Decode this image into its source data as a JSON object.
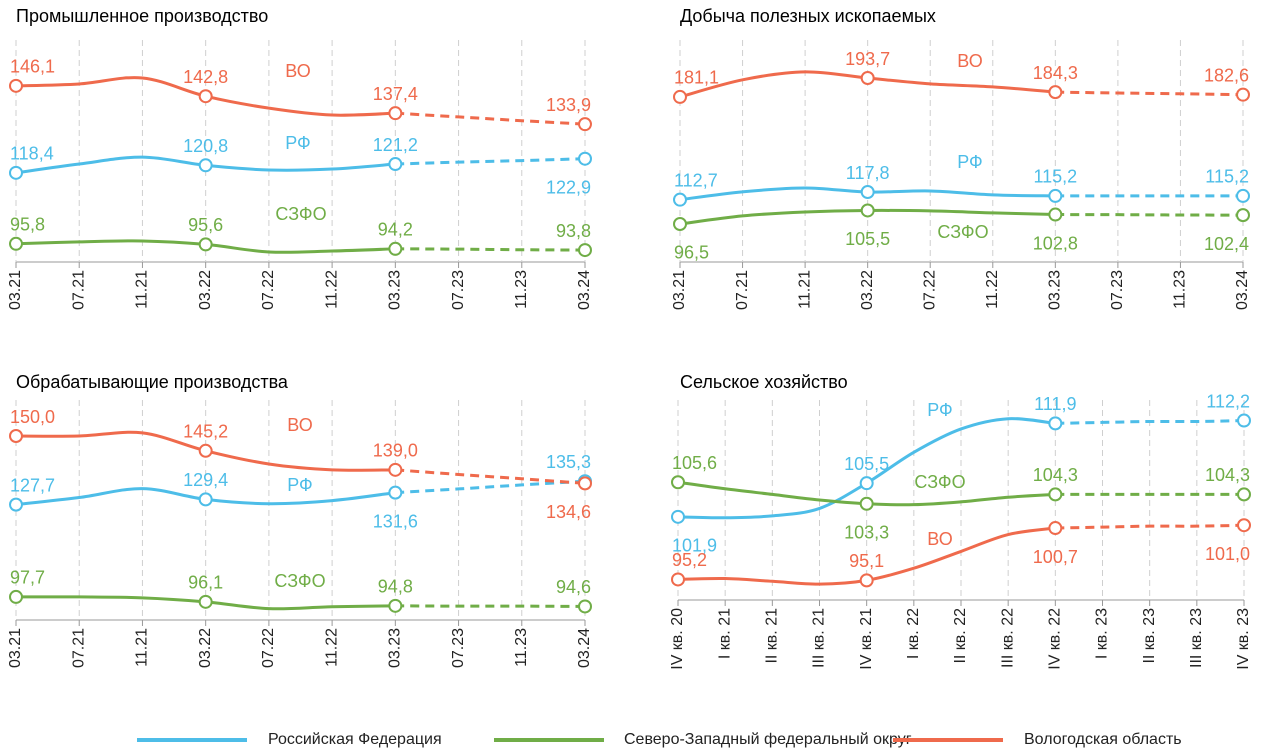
{
  "chart_data": [
    {
      "type": "line",
      "title": "Промышленное производство",
      "categories": [
        "03.21",
        "07.21",
        "11.21",
        "03.22",
        "07.22",
        "11.22",
        "03.23",
        "07.23",
        "11.23",
        "03.24"
      ],
      "forecast_from": "03.23",
      "ylim": [
        90,
        160.7
      ],
      "series": [
        {
          "name": "РФ",
          "color": "#4dbde8",
          "values": [
            118.4,
            121.2,
            123.4,
            120.8,
            119.3,
            119.6,
            121.2,
            121.8,
            122.3,
            122.9
          ],
          "value_labels": [
            "118,4",
            null,
            null,
            "120,8",
            null,
            null,
            "121,2",
            null,
            null,
            "122,9"
          ]
        },
        {
          "name": "СЗФО",
          "color": "#70ad47",
          "values": [
            95.8,
            96.4,
            96.7,
            95.6,
            93.2,
            93.5,
            94.2,
            94.1,
            93.9,
            93.8
          ],
          "value_labels": [
            "95,8",
            null,
            null,
            "95,6",
            null,
            null,
            "94,2",
            null,
            null,
            "93,8"
          ]
        },
        {
          "name": "ВО",
          "color": "#ef6a4c",
          "values": [
            146.1,
            146.7,
            148.6,
            142.8,
            139.0,
            136.8,
            137.4,
            136.2,
            135.0,
            133.9
          ],
          "value_labels": [
            "146,1",
            null,
            null,
            "142,8",
            null,
            null,
            "137,4",
            null,
            null,
            "133,9"
          ]
        }
      ]
    },
    {
      "type": "line",
      "title": "Добыча полезных ископаемых",
      "categories": [
        "03.21",
        "07.21",
        "11.21",
        "03.22",
        "07.22",
        "11.22",
        "03.23",
        "07.23",
        "11.23",
        "03.24"
      ],
      "forecast_from": "03.23",
      "ylim": [
        71.2,
        219
      ],
      "series": [
        {
          "name": "РФ",
          "color": "#4dbde8",
          "values": [
            112.7,
            117.9,
            120.5,
            117.8,
            118.5,
            115.9,
            115.2,
            115.2,
            115.2,
            115.2
          ],
          "value_labels": [
            "112,7",
            null,
            null,
            "117,8",
            null,
            null,
            "115,2",
            null,
            null,
            "115,2"
          ]
        },
        {
          "name": "СЗФО",
          "color": "#70ad47",
          "values": [
            96.5,
            101.9,
            104.5,
            105.5,
            105.2,
            103.9,
            102.8,
            102.7,
            102.5,
            102.4
          ],
          "value_labels": [
            "96,5",
            null,
            null,
            "105,5",
            null,
            null,
            "102,8",
            null,
            null,
            "102,4"
          ]
        },
        {
          "name": "ВО",
          "color": "#ef6a4c",
          "values": [
            181.1,
            192.5,
            197.8,
            193.7,
            189.8,
            187.8,
            184.3,
            183.7,
            183.2,
            182.6
          ],
          "value_labels": [
            "181,1",
            null,
            null,
            "193,7",
            null,
            null,
            "184,3",
            null,
            null,
            "182,6"
          ]
        }
      ]
    },
    {
      "type": "line",
      "title": "Обрабатывающие производства",
      "categories": [
        "03.21",
        "07.21",
        "11.21",
        "03.22",
        "07.22",
        "11.22",
        "03.23",
        "07.23",
        "11.23",
        "03.24"
      ],
      "forecast_from": "03.23",
      "ylim": [
        90.2,
        161.7
      ],
      "series": [
        {
          "name": "РФ",
          "color": "#4dbde8",
          "values": [
            127.7,
            130.0,
            132.9,
            129.4,
            128.0,
            129.0,
            131.6,
            132.8,
            134.1,
            135.3
          ],
          "value_labels": [
            "127,7",
            null,
            null,
            "129,4",
            null,
            null,
            "131,6",
            null,
            null,
            "135,3"
          ]
        },
        {
          "name": "СЗФО",
          "color": "#70ad47",
          "values": [
            97.7,
            97.7,
            97.4,
            96.1,
            93.9,
            94.5,
            94.8,
            94.7,
            94.7,
            94.6
          ],
          "value_labels": [
            "97,7",
            null,
            null,
            "96,1",
            null,
            null,
            "94,8",
            null,
            null,
            "94,6"
          ]
        },
        {
          "name": "ВО",
          "color": "#ef6a4c",
          "values": [
            150.0,
            150.0,
            151.0,
            145.2,
            140.9,
            139.0,
            139.0,
            137.5,
            136.1,
            134.6
          ],
          "value_labels": [
            "150,0",
            null,
            null,
            "145,2",
            null,
            null,
            "139,0",
            null,
            null,
            "134,6"
          ]
        }
      ]
    },
    {
      "type": "line",
      "title": "Сельское хозяйство",
      "categories": [
        "IV кв. 20",
        "I кв. 21",
        "II кв. 21",
        "III кв. 21",
        "IV кв. 21",
        "I кв. 22",
        "II кв. 22",
        "III кв. 22",
        "IV кв. 22",
        "I кв. 23",
        "II кв. 23",
        "III кв. 23",
        "IV кв. 23"
      ],
      "forecast_from": "IV кв. 22",
      "ylim": [
        93.0,
        114.4
      ],
      "series": [
        {
          "name": "РФ",
          "color": "#4dbde8",
          "values": [
            101.9,
            101.8,
            102.0,
            102.8,
            105.5,
            108.8,
            111.3,
            112.4,
            111.9,
            112.0,
            112.1,
            112.1,
            112.2
          ],
          "value_labels": [
            "101,9",
            null,
            null,
            null,
            "105,5",
            null,
            null,
            null,
            "111,9",
            null,
            null,
            null,
            "112,2"
          ]
        },
        {
          "name": "СЗФО",
          "color": "#70ad47",
          "values": [
            105.6,
            104.9,
            104.3,
            103.7,
            103.3,
            103.2,
            103.5,
            104.0,
            104.3,
            104.3,
            104.3,
            104.3,
            104.3
          ],
          "value_labels": [
            "105,6",
            null,
            null,
            null,
            "103,3",
            null,
            null,
            null,
            "104,3",
            null,
            null,
            null,
            "104,3"
          ]
        },
        {
          "name": "ВО",
          "color": "#ef6a4c",
          "values": [
            95.2,
            95.3,
            95.0,
            94.7,
            95.1,
            96.4,
            98.2,
            100.0,
            100.7,
            100.8,
            100.9,
            100.9,
            101.0
          ],
          "value_labels": [
            "95,2",
            null,
            null,
            null,
            "95,1",
            null,
            null,
            null,
            "100,7",
            null,
            null,
            null,
            "101,0"
          ]
        }
      ]
    }
  ],
  "legend": [
    {
      "name": "Российская Федерация",
      "color": "#4dbde8"
    },
    {
      "name": "Северо-Западный федеральный округ",
      "color": "#70ad47"
    },
    {
      "name": "Вологодская область",
      "color": "#ef6a4c"
    }
  ]
}
